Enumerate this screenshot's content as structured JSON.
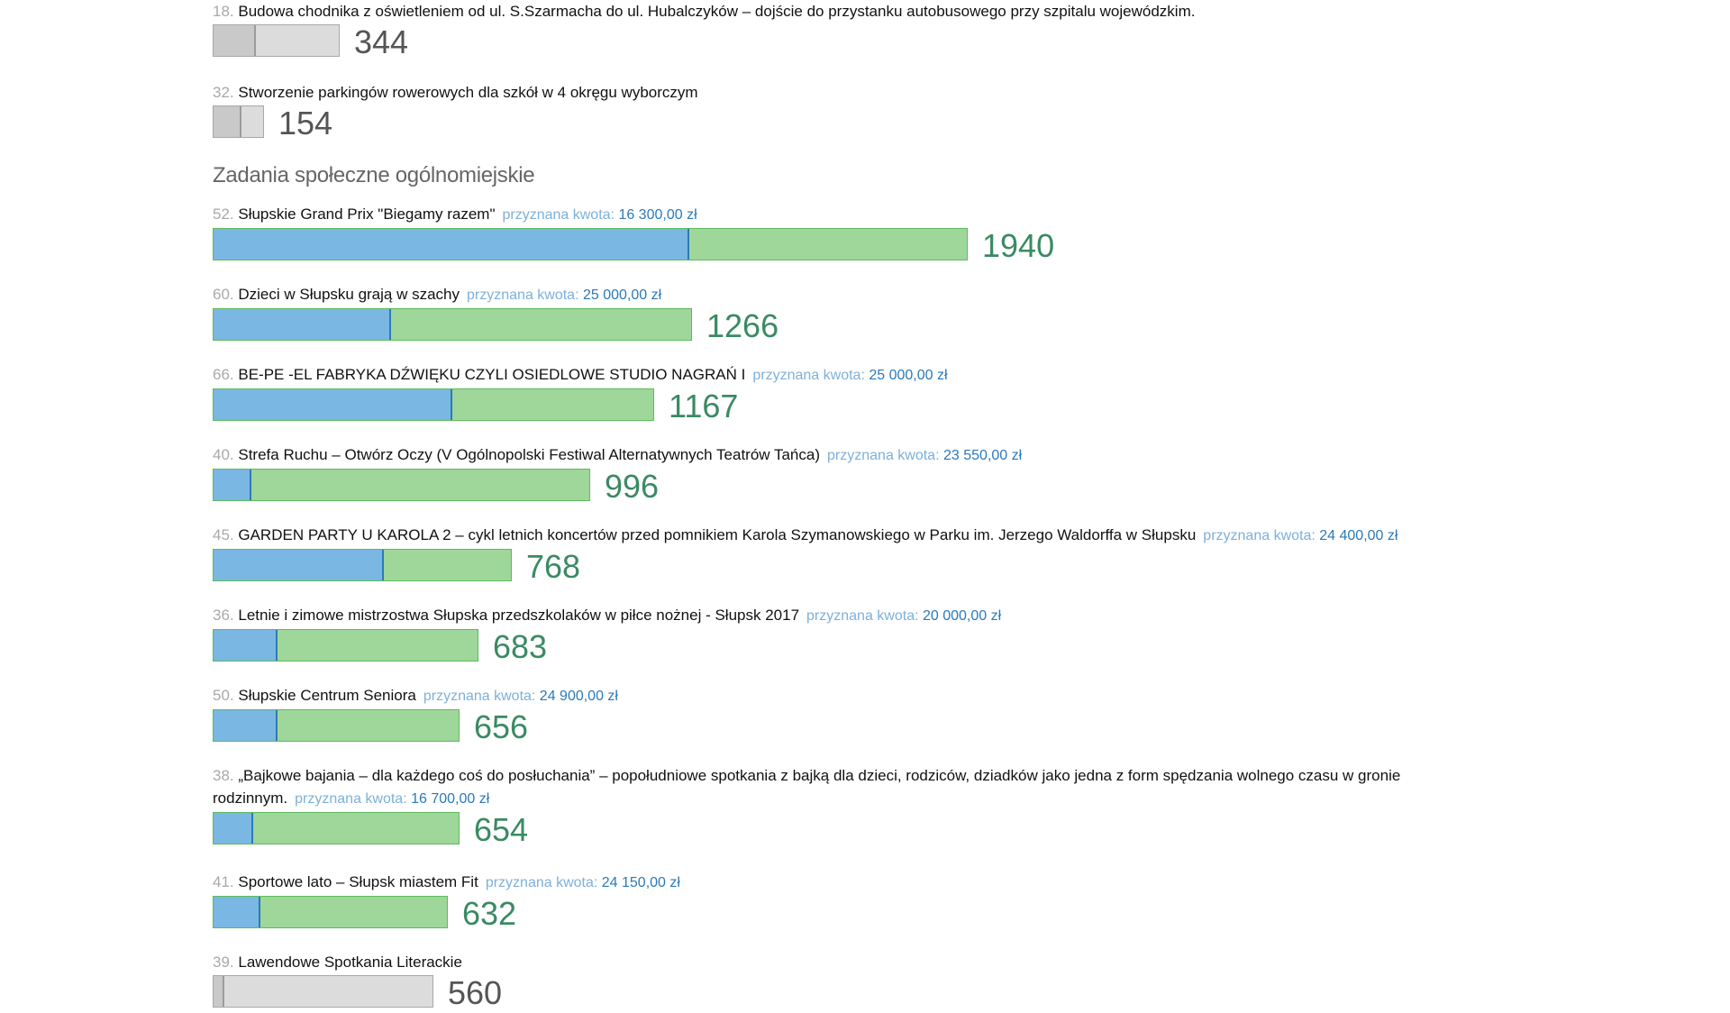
{
  "amount_label": "przyznana kwota:",
  "section_title": "Zadania społeczne ogólnomiejskie",
  "colors": {
    "blue": "#7ab7e2",
    "green": "#9fd69a",
    "gray": "#dcdcdc",
    "votes": "#3a8a63"
  },
  "district_items": [
    {
      "num": "18.",
      "title": "Budowa chodnika z oświetleniem od ul. S.Szarmacha do ul. Hubalczyków – dojście do przystanku autobusowego przy szpitalu wojewódzkim.",
      "votes": "344",
      "bar_fraction": 0.168,
      "fill_fraction": 0.33
    },
    {
      "num": "32.",
      "title": "Stworzenie parkingów rowerowych dla szkół w 4 okręgu wyborczym",
      "votes": "154",
      "bar_fraction": 0.068,
      "fill_fraction": 0.55
    }
  ],
  "city_items": [
    {
      "num": "52.",
      "title": "Słupskie Grand Prix \"Biegamy razem\"",
      "amount": "16 300,00 zł",
      "votes": "1940",
      "bar_fraction": 1.0,
      "fill_fraction": 0.63
    },
    {
      "num": "60.",
      "title": "Dzieci w Słupsku grają w szachy",
      "amount": "25 000,00 zł",
      "votes": "1266",
      "bar_fraction": 0.635,
      "fill_fraction": 0.37
    },
    {
      "num": "66.",
      "title": "BE-PE -EL FABRYKA DŹWIĘKU CZYLI OSIEDLOWE STUDIO NAGRAŃ I",
      "amount": "25 000,00 zł",
      "votes": "1167",
      "bar_fraction": 0.585,
      "fill_fraction": 0.54
    },
    {
      "num": "40.",
      "title": "Strefa Ruchu – Otwórz Oczy (V Ogólnopolski Festiwal Alternatywnych Teatrów Tańca)",
      "amount": "23 550,00 zł",
      "votes": "996",
      "bar_fraction": 0.5,
      "fill_fraction": 0.1
    },
    {
      "num": "45.",
      "title": "GARDEN PARTY U KAROLA 2 – cykl letnich koncertów przed pomnikiem Karola Szymanowskiego w Parku im. Jerzego Waldorffa w Słupsku",
      "amount": "24 400,00 zł",
      "votes": "768",
      "bar_fraction": 0.396,
      "fill_fraction": 0.57
    },
    {
      "num": "36.",
      "title": "Letnie i zimowe mistrzostwa Słupska przedszkolaków w piłce nożnej - Słupsk 2017",
      "amount": "20 000,00 zł",
      "votes": "683",
      "bar_fraction": 0.352,
      "fill_fraction": 0.24
    },
    {
      "num": "50.",
      "title": "Słupskie Centrum Seniora",
      "amount": "24 900,00 zł",
      "votes": "656",
      "bar_fraction": 0.327,
      "fill_fraction": 0.26
    },
    {
      "num": "38.",
      "title": "„Bajkowe bajania – dla każdego coś do posłuchania” – popołudniowe spotkania z bajką dla dzieci, rodziców, dziadków jako jedna z form spędzania wolnego czasu w gronie rodzinnym.",
      "amount": "16 700,00 zł",
      "votes": "654",
      "bar_fraction": 0.327,
      "fill_fraction": 0.16
    },
    {
      "num": "41.",
      "title": "Sportowe lato – Słupsk miastem Fit",
      "amount": "24 150,00 zł",
      "votes": "632",
      "bar_fraction": 0.311,
      "fill_fraction": 0.2
    },
    {
      "num": "39.",
      "title": "Lawendowe Spotkania Literackie",
      "votes": "560",
      "bar_fraction": 0.292,
      "fill_fraction": 0.05
    }
  ]
}
